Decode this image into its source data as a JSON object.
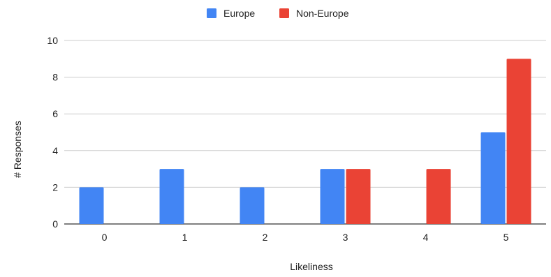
{
  "chart_data": {
    "type": "bar",
    "title": "",
    "xlabel": "Likeliness",
    "ylabel": "# Responses",
    "categories": [
      "0",
      "1",
      "2",
      "3",
      "4",
      "5"
    ],
    "series": [
      {
        "name": "Europe",
        "color": "#4285F4",
        "values": [
          2,
          3,
          2,
          3,
          0,
          5
        ]
      },
      {
        "name": "Non-Europe",
        "color": "#EA4335",
        "values": [
          0,
          0,
          0,
          3,
          3,
          9
        ]
      }
    ],
    "ylim": [
      0,
      10
    ],
    "yticks": [
      "0",
      "2",
      "4",
      "6",
      "8",
      "10"
    ],
    "grid": true,
    "legend_position": "top"
  }
}
